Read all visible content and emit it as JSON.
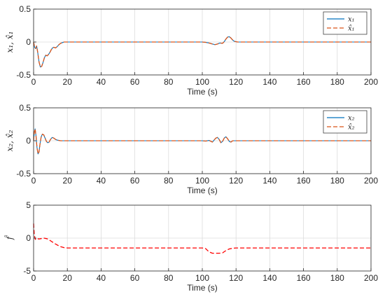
{
  "chart_data": [
    {
      "type": "line",
      "xlabel": "Time (s)",
      "ylabel": "x₁, x̂₁",
      "xlim": [
        0,
        200
      ],
      "ylim": [
        -0.5,
        0.5
      ],
      "xticks": [
        "0",
        "20",
        "40",
        "60",
        "80",
        "100",
        "120",
        "140",
        "160",
        "180",
        "200"
      ],
      "yticks": [
        "-0.5",
        "0",
        "0.5"
      ],
      "grid": true,
      "legend_position": "top-right",
      "series": [
        {
          "name": "x₁",
          "color": "#0072BD",
          "style": "solid",
          "points": [
            [
              0,
              0
            ],
            [
              0.6,
              -0.08
            ],
            [
              1.2,
              -0.1
            ],
            [
              1.8,
              -0.06
            ],
            [
              2.4,
              -0.15
            ],
            [
              3.2,
              -0.3
            ],
            [
              4,
              -0.38
            ],
            [
              4.8,
              -0.37
            ],
            [
              5.6,
              -0.31
            ],
            [
              6.4,
              -0.24
            ],
            [
              7.2,
              -0.2
            ],
            [
              8,
              -0.21
            ],
            [
              8.8,
              -0.19
            ],
            [
              9.6,
              -0.16
            ],
            [
              10.4,
              -0.12
            ],
            [
              11.2,
              -0.09
            ],
            [
              12,
              -0.08
            ],
            [
              13,
              -0.09
            ],
            [
              14,
              -0.07
            ],
            [
              15,
              -0.04
            ],
            [
              16,
              -0.02
            ],
            [
              17,
              -0.01
            ],
            [
              18,
              0
            ],
            [
              20,
              0
            ],
            [
              30,
              0
            ],
            [
              40,
              0
            ],
            [
              60,
              0
            ],
            [
              80,
              0
            ],
            [
              100,
              0
            ],
            [
              102,
              -0.005
            ],
            [
              104,
              -0.015
            ],
            [
              106,
              -0.03
            ],
            [
              107.5,
              -0.04
            ],
            [
              109,
              -0.03
            ],
            [
              110.5,
              -0.015
            ],
            [
              112,
              -0.02
            ],
            [
              113,
              0.005
            ],
            [
              114,
              0.045
            ],
            [
              115,
              0.075
            ],
            [
              116,
              0.08
            ],
            [
              117,
              0.06
            ],
            [
              118,
              0.03
            ],
            [
              119,
              0.01
            ],
            [
              121,
              0
            ],
            [
              130,
              0
            ],
            [
              150,
              0
            ],
            [
              170,
              0
            ],
            [
              200,
              0
            ]
          ]
        },
        {
          "name": "x̂₁",
          "color": "#D95319",
          "style": "dashed",
          "points": [
            [
              0,
              0
            ],
            [
              0.6,
              -0.08
            ],
            [
              1.2,
              -0.1
            ],
            [
              1.8,
              -0.06
            ],
            [
              2.4,
              -0.15
            ],
            [
              3.2,
              -0.3
            ],
            [
              4,
              -0.38
            ],
            [
              4.8,
              -0.37
            ],
            [
              5.6,
              -0.31
            ],
            [
              6.4,
              -0.24
            ],
            [
              7.2,
              -0.2
            ],
            [
              8,
              -0.21
            ],
            [
              8.8,
              -0.19
            ],
            [
              9.6,
              -0.16
            ],
            [
              10.4,
              -0.12
            ],
            [
              11.2,
              -0.09
            ],
            [
              12,
              -0.08
            ],
            [
              13,
              -0.09
            ],
            [
              14,
              -0.07
            ],
            [
              15,
              -0.04
            ],
            [
              16,
              -0.02
            ],
            [
              17,
              -0.01
            ],
            [
              18,
              0
            ],
            [
              20,
              0
            ],
            [
              30,
              0
            ],
            [
              40,
              0
            ],
            [
              60,
              0
            ],
            [
              80,
              0
            ],
            [
              100,
              0
            ],
            [
              102,
              -0.005
            ],
            [
              104,
              -0.015
            ],
            [
              106,
              -0.03
            ],
            [
              107.5,
              -0.04
            ],
            [
              109,
              -0.03
            ],
            [
              110.5,
              -0.015
            ],
            [
              112,
              -0.02
            ],
            [
              113,
              0.005
            ],
            [
              114,
              0.045
            ],
            [
              115,
              0.075
            ],
            [
              116,
              0.08
            ],
            [
              117,
              0.06
            ],
            [
              118,
              0.03
            ],
            [
              119,
              0.01
            ],
            [
              121,
              0
            ],
            [
              130,
              0
            ],
            [
              150,
              0
            ],
            [
              170,
              0
            ],
            [
              200,
              0
            ]
          ]
        }
      ]
    },
    {
      "type": "line",
      "xlabel": "Time (s)",
      "ylabel": "x₂, x̂₂",
      "xlim": [
        0,
        200
      ],
      "ylim": [
        -0.5,
        0.5
      ],
      "xticks": [
        "0",
        "20",
        "40",
        "60",
        "80",
        "100",
        "120",
        "140",
        "160",
        "180",
        "200"
      ],
      "yticks": [
        "-0.5",
        "0",
        "0.5"
      ],
      "grid": true,
      "legend_position": "top-right",
      "series": [
        {
          "name": "x₂",
          "color": "#0072BD",
          "style": "solid",
          "points": [
            [
              0,
              0
            ],
            [
              0.4,
              0.12
            ],
            [
              0.9,
              0.18
            ],
            [
              1.4,
              0.08
            ],
            [
              2,
              -0.1
            ],
            [
              2.6,
              -0.2
            ],
            [
              3.2,
              -0.17
            ],
            [
              3.8,
              -0.05
            ],
            [
              4.5,
              0.06
            ],
            [
              5.2,
              0.1
            ],
            [
              6,
              0.09
            ],
            [
              6.8,
              0.04
            ],
            [
              7.6,
              -0.01
            ],
            [
              8.4,
              -0.03
            ],
            [
              9.2,
              -0.02
            ],
            [
              10,
              0.02
            ],
            [
              11,
              0.05
            ],
            [
              12,
              0.04
            ],
            [
              13,
              0.02
            ],
            [
              14,
              0.01
            ],
            [
              16,
              0
            ],
            [
              20,
              0
            ],
            [
              40,
              0
            ],
            [
              60,
              0
            ],
            [
              80,
              0
            ],
            [
              100,
              0
            ],
            [
              102,
              -0.005
            ],
            [
              104,
              0.005
            ],
            [
              106,
              -0.02
            ],
            [
              107,
              0.01
            ],
            [
              108,
              0.04
            ],
            [
              109,
              0.05
            ],
            [
              110,
              0.02
            ],
            [
              111,
              -0.03
            ],
            [
              112,
              -0.01
            ],
            [
              113,
              0.04
            ],
            [
              114,
              0.06
            ],
            [
              115,
              0.03
            ],
            [
              116,
              -0.01
            ],
            [
              117,
              -0.02
            ],
            [
              118,
              0
            ],
            [
              120,
              0
            ],
            [
              140,
              0
            ],
            [
              160,
              0
            ],
            [
              200,
              0
            ]
          ]
        },
        {
          "name": "x̂₂",
          "color": "#D95319",
          "style": "dashed",
          "points": [
            [
              0,
              0
            ],
            [
              0.4,
              0.12
            ],
            [
              0.9,
              0.18
            ],
            [
              1.4,
              0.08
            ],
            [
              2,
              -0.1
            ],
            [
              2.6,
              -0.2
            ],
            [
              3.2,
              -0.17
            ],
            [
              3.8,
              -0.05
            ],
            [
              4.5,
              0.06
            ],
            [
              5.2,
              0.1
            ],
            [
              6,
              0.09
            ],
            [
              6.8,
              0.04
            ],
            [
              7.6,
              -0.01
            ],
            [
              8.4,
              -0.03
            ],
            [
              9.2,
              -0.02
            ],
            [
              10,
              0.02
            ],
            [
              11,
              0.05
            ],
            [
              12,
              0.04
            ],
            [
              13,
              0.02
            ],
            [
              14,
              0.01
            ],
            [
              16,
              0
            ],
            [
              20,
              0
            ],
            [
              40,
              0
            ],
            [
              60,
              0
            ],
            [
              80,
              0
            ],
            [
              100,
              0
            ],
            [
              102,
              -0.005
            ],
            [
              104,
              0.005
            ],
            [
              106,
              -0.02
            ],
            [
              107,
              0.01
            ],
            [
              108,
              0.04
            ],
            [
              109,
              0.05
            ],
            [
              110,
              0.02
            ],
            [
              111,
              -0.03
            ],
            [
              112,
              -0.01
            ],
            [
              113,
              0.04
            ],
            [
              114,
              0.06
            ],
            [
              115,
              0.03
            ],
            [
              116,
              -0.01
            ],
            [
              117,
              -0.02
            ],
            [
              118,
              0
            ],
            [
              120,
              0
            ],
            [
              140,
              0
            ],
            [
              160,
              0
            ],
            [
              200,
              0
            ]
          ]
        }
      ]
    },
    {
      "type": "line",
      "xlabel": "Time (s)",
      "ylabel": "f̂",
      "xlim": [
        0,
        200
      ],
      "ylim": [
        -5,
        5
      ],
      "xticks": [
        "0",
        "20",
        "40",
        "60",
        "80",
        "100",
        "120",
        "140",
        "160",
        "180",
        "200"
      ],
      "yticks": [
        "-5",
        "0",
        "5"
      ],
      "grid": true,
      "series": [
        {
          "color": "#FF0000",
          "style": "dashed",
          "points": [
            [
              0,
              2.2
            ],
            [
              0.4,
              0.5
            ],
            [
              1,
              -0.2
            ],
            [
              2,
              0
            ],
            [
              3,
              -0.15
            ],
            [
              4,
              -0.1
            ],
            [
              6,
              0
            ],
            [
              8,
              -0.1
            ],
            [
              10,
              -0.4
            ],
            [
              12,
              -0.75
            ],
            [
              14,
              -1.05
            ],
            [
              16,
              -1.3
            ],
            [
              18,
              -1.45
            ],
            [
              20,
              -1.5
            ],
            [
              40,
              -1.5
            ],
            [
              60,
              -1.5
            ],
            [
              80,
              -1.5
            ],
            [
              100,
              -1.5
            ],
            [
              102,
              -1.6
            ],
            [
              104,
              -2.1
            ],
            [
              106,
              -2.3
            ],
            [
              110,
              -2.3
            ],
            [
              112,
              -2.25
            ],
            [
              114,
              -1.9
            ],
            [
              116,
              -1.65
            ],
            [
              118,
              -1.55
            ],
            [
              120,
              -1.5
            ],
            [
              150,
              -1.5
            ],
            [
              180,
              -1.5
            ],
            [
              200,
              -1.5
            ]
          ]
        }
      ]
    }
  ]
}
